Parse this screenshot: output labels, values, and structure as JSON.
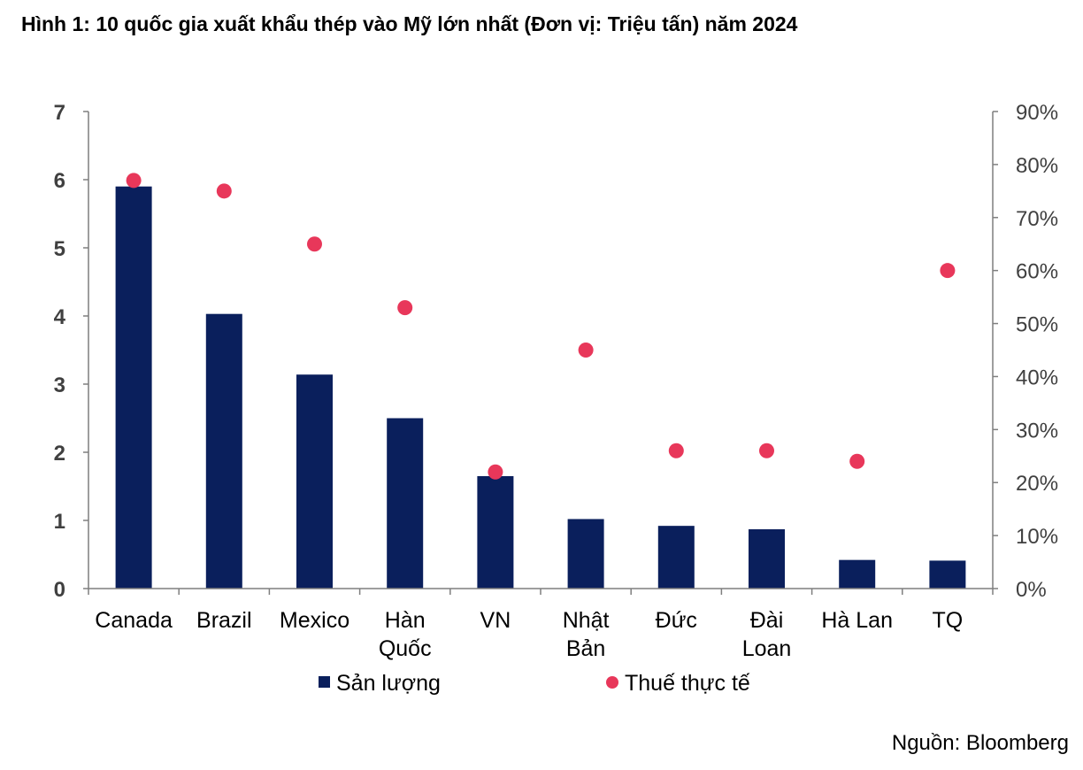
{
  "title": "Hình 1: 10 quốc gia xuất khẩu thép vào Mỹ lớn nhất (Đơn vị: Triệu tấn) năm 2024",
  "source": "Nguồn: Bloomberg",
  "colors": {
    "bar": "#0a1f5c",
    "dot": "#e8375a",
    "axis": "#7f7f7f"
  },
  "chart_data": {
    "type": "bar",
    "categories": [
      [
        "Canada"
      ],
      [
        "Brazil"
      ],
      [
        "Mexico"
      ],
      [
        "Hàn",
        "Quốc"
      ],
      [
        "VN"
      ],
      [
        "Nhật",
        "Bản"
      ],
      [
        "Đức"
      ],
      [
        "Đài",
        "Loan"
      ],
      [
        "Hà Lan"
      ],
      [
        "TQ"
      ]
    ],
    "series": [
      {
        "name": "Sản lượng",
        "type": "bar",
        "axis": "left",
        "values": [
          5.9,
          4.03,
          3.14,
          2.5,
          1.65,
          1.02,
          0.92,
          0.87,
          0.42,
          0.41
        ]
      },
      {
        "name": "Thuế thực tế",
        "type": "scatter",
        "axis": "right",
        "values": [
          0.77,
          0.75,
          0.65,
          0.53,
          0.22,
          0.45,
          0.26,
          0.26,
          0.24,
          0.6
        ]
      }
    ],
    "ylim": [
      0,
      7
    ],
    "yticks": [
      "0",
      "1",
      "2",
      "3",
      "4",
      "5",
      "6",
      "7"
    ],
    "y2lim": [
      0,
      0.9
    ],
    "y2ticks": [
      "0%",
      "10%",
      "20%",
      "30%",
      "40%",
      "50%",
      "60%",
      "70%",
      "80%",
      "90%"
    ],
    "legend_position": "bottom",
    "grid": false
  }
}
